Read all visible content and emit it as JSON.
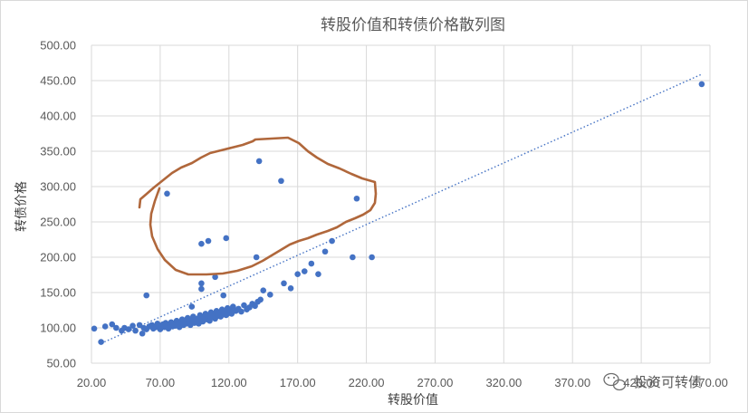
{
  "chart_data": {
    "type": "scatter",
    "title": "转股价值和转债价格散列图",
    "xlabel": "转股价值",
    "ylabel": "转债价格",
    "xlim": [
      20,
      470
    ],
    "ylim": [
      50,
      500
    ],
    "xticks": [
      "20.00",
      "70.00",
      "120.00",
      "170.00",
      "220.00",
      "270.00",
      "320.00",
      "370.00",
      "420.00",
      "470.00"
    ],
    "yticks": [
      "50.00",
      "100.00",
      "150.00",
      "200.00",
      "250.00",
      "300.00",
      "350.00",
      "400.00",
      "450.00",
      "500.00"
    ],
    "grid": "vertical and horizontal",
    "legend": "none",
    "point_color": "#4472c4",
    "trendline": {
      "style": "dotted",
      "color": "#4472c4",
      "from": [
        27,
        78
      ],
      "to": [
        464,
        459
      ]
    },
    "annotation": {
      "shape": "hand-drawn loop",
      "color": "#b0673b"
    },
    "points": [
      [
        22,
        99
      ],
      [
        27,
        80
      ],
      [
        30,
        102
      ],
      [
        35,
        105
      ],
      [
        38,
        100
      ],
      [
        42,
        96
      ],
      [
        44,
        100
      ],
      [
        47,
        98
      ],
      [
        50,
        103
      ],
      [
        52,
        96
      ],
      [
        55,
        104
      ],
      [
        57,
        92
      ],
      [
        58,
        100
      ],
      [
        60,
        98
      ],
      [
        62,
        102
      ],
      [
        64,
        104
      ],
      [
        65,
        99
      ],
      [
        67,
        101
      ],
      [
        68,
        106
      ],
      [
        70,
        102
      ],
      [
        70,
        98
      ],
      [
        72,
        105
      ],
      [
        73,
        101
      ],
      [
        74,
        107
      ],
      [
        75,
        103
      ],
      [
        76,
        99
      ],
      [
        77,
        104
      ],
      [
        78,
        108
      ],
      [
        79,
        102
      ],
      [
        80,
        106
      ],
      [
        81,
        103
      ],
      [
        82,
        110
      ],
      [
        83,
        105
      ],
      [
        84,
        101
      ],
      [
        85,
        107
      ],
      [
        86,
        112
      ],
      [
        87,
        104
      ],
      [
        88,
        109
      ],
      [
        89,
        106
      ],
      [
        90,
        114
      ],
      [
        91,
        108
      ],
      [
        92,
        104
      ],
      [
        93,
        111
      ],
      [
        94,
        116
      ],
      [
        95,
        107
      ],
      [
        96,
        110
      ],
      [
        97,
        113
      ],
      [
        98,
        106
      ],
      [
        99,
        118
      ],
      [
        100,
        111
      ],
      [
        101,
        109
      ],
      [
        102,
        115
      ],
      [
        103,
        120
      ],
      [
        104,
        112
      ],
      [
        105,
        117
      ],
      [
        106,
        110
      ],
      [
        107,
        122
      ],
      [
        108,
        115
      ],
      [
        109,
        119
      ],
      [
        110,
        113
      ],
      [
        111,
        124
      ],
      [
        112,
        117
      ],
      [
        113,
        121
      ],
      [
        114,
        116
      ],
      [
        115,
        126
      ],
      [
        116,
        119
      ],
      [
        117,
        123
      ],
      [
        118,
        118
      ],
      [
        119,
        128
      ],
      [
        120,
        121
      ],
      [
        121,
        125
      ],
      [
        122,
        120
      ],
      [
        123,
        130
      ],
      [
        125,
        124
      ],
      [
        127,
        127
      ],
      [
        129,
        123
      ],
      [
        131,
        132
      ],
      [
        133,
        126
      ],
      [
        135,
        129
      ],
      [
        137,
        134
      ],
      [
        139,
        131
      ],
      [
        141,
        137
      ],
      [
        143,
        140
      ],
      [
        145,
        153
      ],
      [
        150,
        147
      ],
      [
        160,
        163
      ],
      [
        165,
        156
      ],
      [
        170,
        176
      ],
      [
        175,
        180
      ],
      [
        180,
        191
      ],
      [
        185,
        176
      ],
      [
        190,
        208
      ],
      [
        195,
        223
      ],
      [
        210,
        200
      ],
      [
        93,
        130
      ],
      [
        100,
        155
      ],
      [
        100,
        163
      ],
      [
        110,
        172
      ],
      [
        116,
        146
      ],
      [
        60,
        146
      ],
      [
        75,
        290
      ],
      [
        100,
        219
      ],
      [
        105,
        223
      ],
      [
        118,
        227
      ],
      [
        140,
        200
      ],
      [
        142,
        336
      ],
      [
        158,
        308
      ],
      [
        213,
        283
      ],
      [
        224,
        200
      ],
      [
        464,
        445
      ]
    ]
  },
  "watermark": {
    "text": "投资可转债",
    "icon": "wechat-icon"
  }
}
